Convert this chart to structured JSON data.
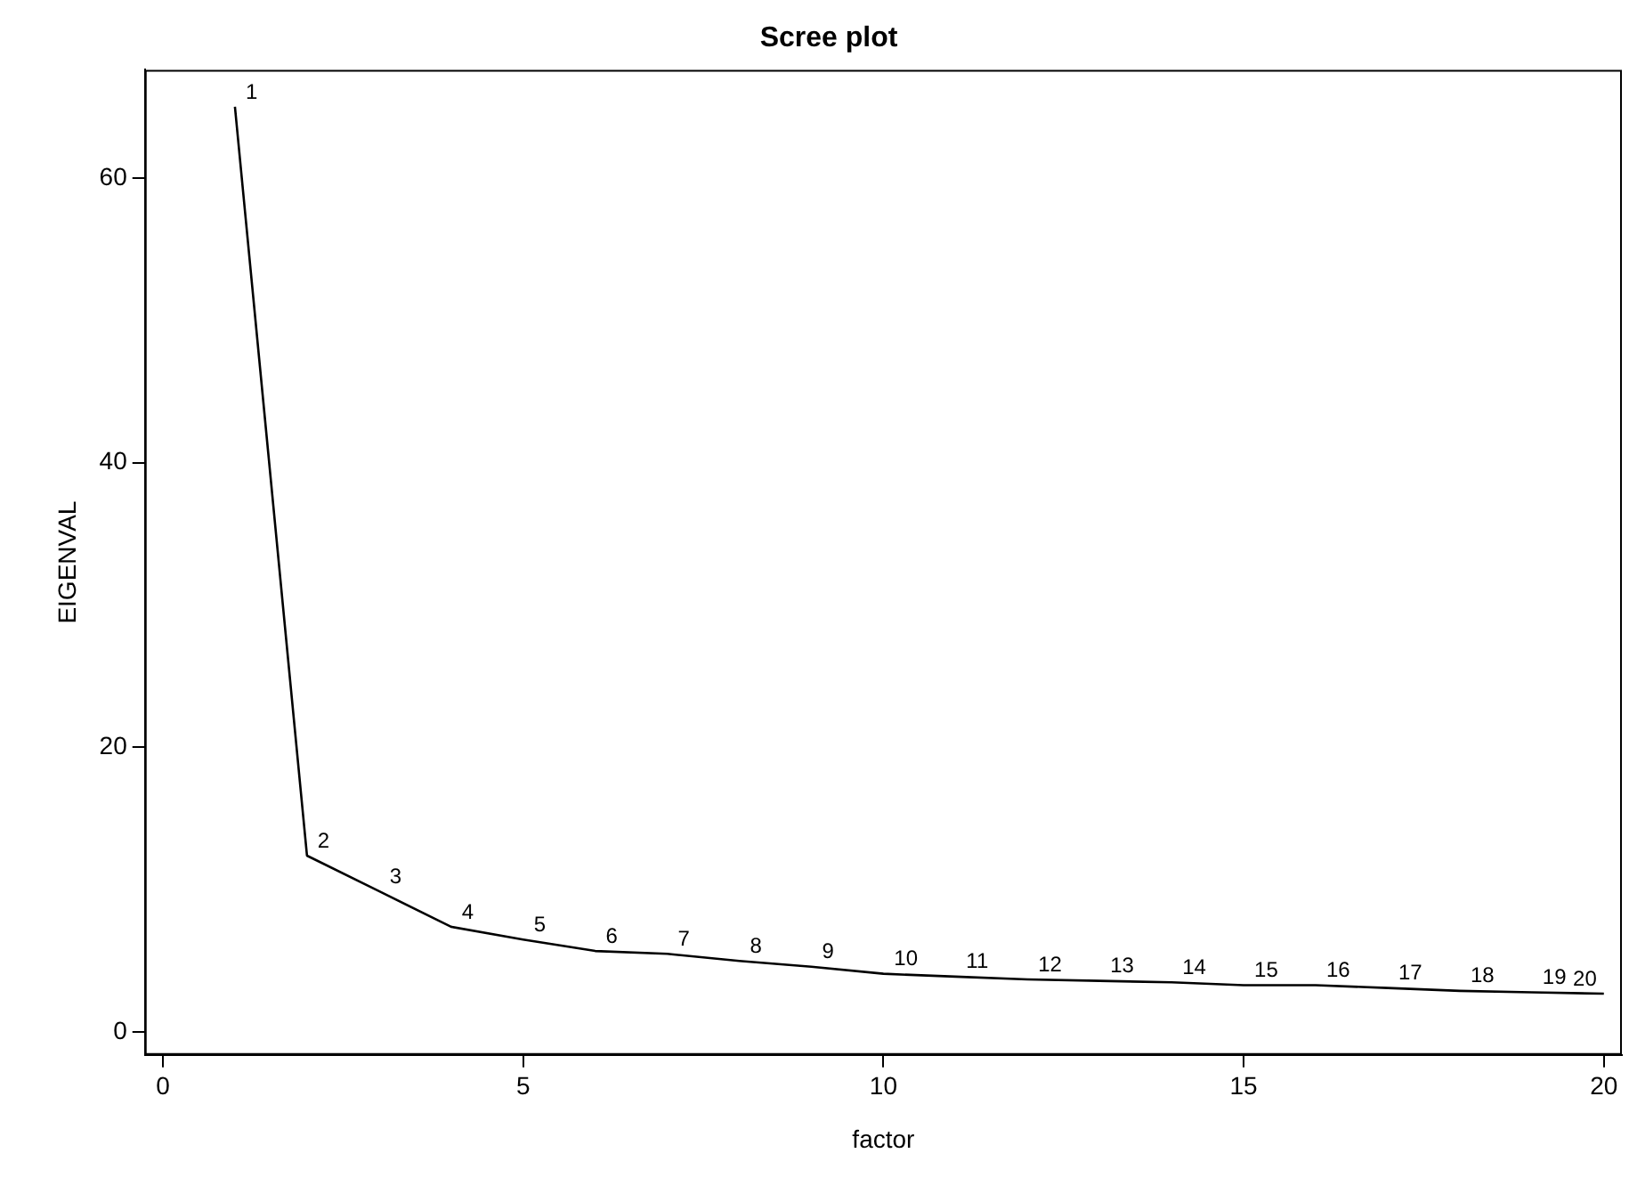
{
  "chart_data": {
    "type": "line",
    "title": "Scree plot",
    "xlabel": "factor",
    "ylabel": "EIGENVAL",
    "x": [
      1,
      2,
      3,
      4,
      5,
      6,
      7,
      8,
      9,
      10,
      11,
      12,
      13,
      14,
      15,
      16,
      17,
      18,
      19,
      20
    ],
    "series": [
      {
        "color": "#000000",
        "values": [
          65,
          12.4,
          9.9,
          7.4,
          6.5,
          5.7,
          5.5,
          5.0,
          4.6,
          4.1,
          3.9,
          3.7,
          3.6,
          3.5,
          3.3,
          3.3,
          3.1,
          2.9,
          2.8,
          2.7
        ]
      }
    ],
    "annotations": [
      {
        "text": "1",
        "x": 1,
        "y": 65
      },
      {
        "text": "2",
        "x": 2,
        "y": 12.4
      },
      {
        "text": "3",
        "x": 3,
        "y": 9.9
      },
      {
        "text": "4",
        "x": 4,
        "y": 7.4
      },
      {
        "text": "5",
        "x": 5,
        "y": 6.5
      },
      {
        "text": "6",
        "x": 6,
        "y": 5.7
      },
      {
        "text": "7",
        "x": 7,
        "y": 5.5
      },
      {
        "text": "8",
        "x": 8,
        "y": 5.0
      },
      {
        "text": "9",
        "x": 9,
        "y": 4.6
      },
      {
        "text": "10",
        "x": 10,
        "y": 4.1
      },
      {
        "text": "11",
        "x": 11,
        "y": 3.9
      },
      {
        "text": "12",
        "x": 12,
        "y": 3.7
      },
      {
        "text": "13",
        "x": 13,
        "y": 3.6
      },
      {
        "text": "14",
        "x": 14,
        "y": 3.5
      },
      {
        "text": "15",
        "x": 15,
        "y": 3.3
      },
      {
        "text": "16",
        "x": 16,
        "y": 3.3
      },
      {
        "text": "17",
        "x": 17,
        "y": 3.1
      },
      {
        "text": "18",
        "x": 18,
        "y": 2.9
      },
      {
        "text": "19",
        "x": 19,
        "y": 2.8
      },
      {
        "text": "20",
        "x": 20,
        "y": 2.7
      }
    ],
    "xlim": [
      -0.25,
      20.25
    ],
    "xticks": [
      0,
      5,
      10,
      15,
      20
    ],
    "ylim": [
      -1.6,
      67.6
    ],
    "yticks": [
      0,
      20,
      40,
      60
    ],
    "grid": false,
    "legend": false,
    "marker": "none",
    "line_style": "solid"
  }
}
